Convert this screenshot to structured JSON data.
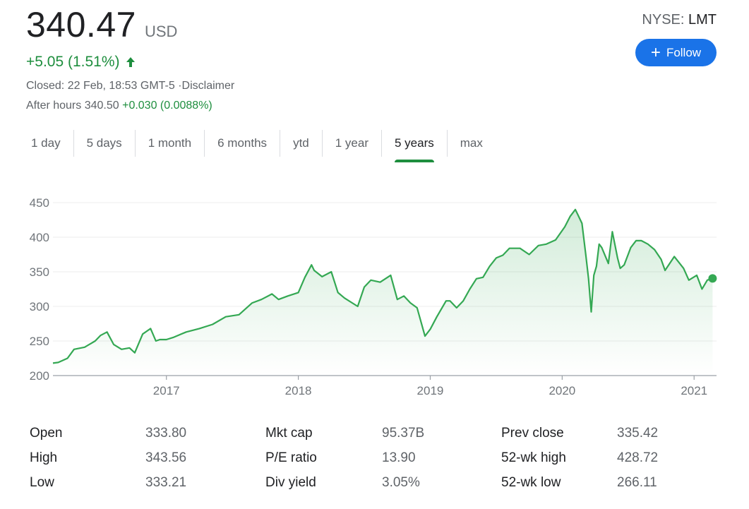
{
  "quote": {
    "price": "340.47",
    "currency": "USD",
    "change": "+5.05 (1.51%)",
    "closed_text": "Closed: 22 Feb, 18:53 GMT-5 ·",
    "disclaimer": "Disclaimer",
    "after_hours_label": "After hours 340.50",
    "after_hours_change": "+0.030 (0.0088%)",
    "exchange": "NYSE: ",
    "symbol": "LMT",
    "follow_label": "Follow"
  },
  "colors": {
    "up": "#1e8e3e",
    "line": "#34a853",
    "button": "#1a73e8"
  },
  "tabs": [
    {
      "label": "1 day"
    },
    {
      "label": "5 days"
    },
    {
      "label": "1 month"
    },
    {
      "label": "6 months"
    },
    {
      "label": "ytd"
    },
    {
      "label": "1 year"
    },
    {
      "label": "5 years",
      "active": true
    },
    {
      "label": "max"
    }
  ],
  "chart_data": {
    "type": "area",
    "xlabel": "",
    "ylabel": "",
    "ylim": [
      200,
      450
    ],
    "yticks": [
      "450",
      "400",
      "350",
      "300",
      "250",
      "200"
    ],
    "xticks": [
      "2017",
      "2018",
      "2019",
      "2020",
      "2021"
    ],
    "xtick_years": [
      2017,
      2018,
      2019,
      2020,
      2021
    ],
    "xlim": [
      2016.14,
      2021.17
    ],
    "grid": "horizontal",
    "series": [
      {
        "x": [
          2016.14,
          2016.18,
          2016.25,
          2016.3,
          2016.38,
          2016.46,
          2016.5,
          2016.55,
          2016.6,
          2016.66,
          2016.72,
          2016.76,
          2016.82,
          2016.88,
          2016.92,
          2016.95,
          2017.0,
          2017.05,
          2017.15,
          2017.25,
          2017.35,
          2017.45,
          2017.55,
          2017.65,
          2017.72,
          2017.8,
          2017.85,
          2017.92,
          2018.0,
          2018.05,
          2018.1,
          2018.12,
          2018.18,
          2018.25,
          2018.3,
          2018.35,
          2018.45,
          2018.5,
          2018.55,
          2018.62,
          2018.7,
          2018.75,
          2018.8,
          2018.85,
          2018.9,
          2018.96,
          2019.0,
          2019.05,
          2019.12,
          2019.15,
          2019.2,
          2019.25,
          2019.3,
          2019.35,
          2019.4,
          2019.45,
          2019.5,
          2019.55,
          2019.6,
          2019.68,
          2019.75,
          2019.82,
          2019.88,
          2019.95,
          2020.02,
          2020.06,
          2020.1,
          2020.12,
          2020.15,
          2020.18,
          2020.2,
          2020.22,
          2020.24,
          2020.26,
          2020.28,
          2020.3,
          2020.35,
          2020.38,
          2020.42,
          2020.44,
          2020.47,
          2020.52,
          2020.56,
          2020.6,
          2020.65,
          2020.7,
          2020.75,
          2020.78,
          2020.85,
          2020.92,
          2020.96,
          2021.02,
          2021.06,
          2021.1,
          2021.14
        ],
        "values": [
          218,
          219,
          225,
          238,
          241,
          250,
          258,
          263,
          245,
          238,
          240,
          233,
          260,
          268,
          250,
          252,
          252,
          255,
          263,
          268,
          274,
          285,
          288,
          305,
          310,
          318,
          310,
          315,
          320,
          342,
          360,
          352,
          343,
          350,
          320,
          312,
          300,
          328,
          338,
          335,
          345,
          310,
          315,
          305,
          298,
          257,
          267,
          285,
          308,
          308,
          298,
          308,
          325,
          340,
          342,
          358,
          370,
          374,
          384,
          384,
          375,
          388,
          390,
          396,
          415,
          430,
          440,
          432,
          420,
          373,
          340,
          292,
          345,
          358,
          390,
          385,
          362,
          408,
          370,
          355,
          360,
          385,
          395,
          395,
          390,
          382,
          368,
          352,
          372,
          355,
          338,
          345,
          325,
          338,
          340.47
        ]
      }
    ]
  },
  "stats": [
    [
      {
        "label": "Open",
        "value": "333.80"
      },
      {
        "label": "Mkt cap",
        "value": "95.37B"
      },
      {
        "label": "Prev close",
        "value": "335.42"
      }
    ],
    [
      {
        "label": "High",
        "value": "343.56"
      },
      {
        "label": "P/E ratio",
        "value": "13.90"
      },
      {
        "label": "52-wk high",
        "value": "428.72"
      }
    ],
    [
      {
        "label": "Low",
        "value": "333.21"
      },
      {
        "label": "Div yield",
        "value": "3.05%"
      },
      {
        "label": "52-wk low",
        "value": "266.11"
      }
    ]
  ]
}
